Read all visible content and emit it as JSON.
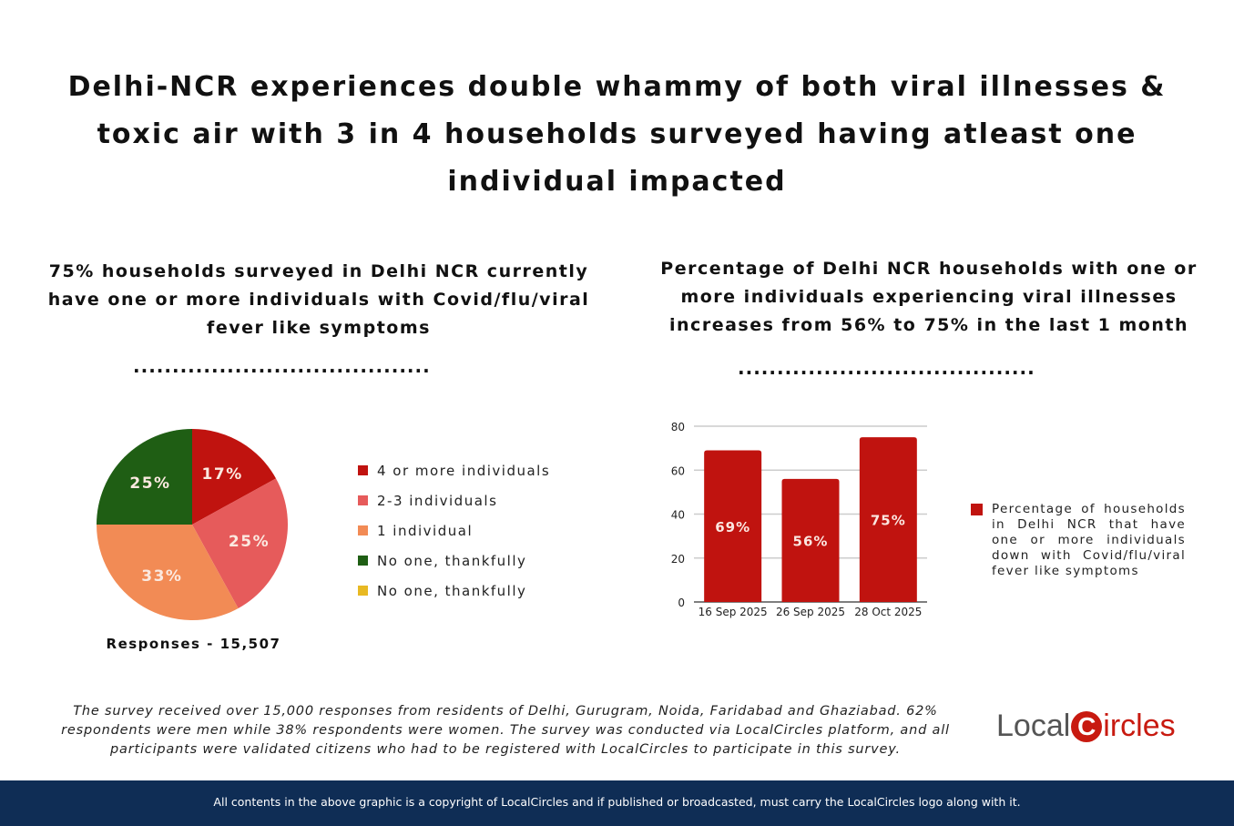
{
  "title": "Delhi-NCR experiences double whammy of both viral illnesses & toxic air with 3 in 4 households surveyed having atleast one individual impacted",
  "left_subtitle": "75% households surveyed in Delhi NCR currently have one or more individuals with Covid/flu/viral fever like symptoms",
  "right_subtitle": "Percentage of Delhi NCR households with one or more individuals experiencing viral illnesses increases from 56% to 75% in the last 1 month",
  "dots": "......................................",
  "responses": "Responses - 15,507",
  "chart_data": [
    {
      "type": "pie",
      "slices": [
        {
          "label": "4 or more individuals",
          "value": 17,
          "data_label": "17%",
          "color": "#c0130f"
        },
        {
          "label": "2-3 individuals",
          "value": 25,
          "data_label": "25%",
          "color": "#e65b5b"
        },
        {
          "label": "1 individual",
          "value": 33,
          "data_label": "33%",
          "color": "#f28b55"
        },
        {
          "label": "No one, thankfully",
          "value": 25,
          "data_label": "25%",
          "color": "#1f5e14"
        },
        {
          "label": "No one, thankfully",
          "value": 0,
          "data_label": "",
          "color": "#e8b923"
        }
      ],
      "legend_position": "right"
    },
    {
      "type": "bar",
      "categories": [
        "16 Sep 2025",
        "26 Sep 2025",
        "28 Oct 2025"
      ],
      "series": [
        {
          "name": "Percentage of households in Delhi NCR that have one or more individuals down with Covid/flu/viral fever like symptoms",
          "values": [
            69,
            56,
            75
          ],
          "data_labels": [
            "69%",
            "56%",
            "75%"
          ],
          "color": "#c0130f"
        }
      ],
      "ylim": [
        0,
        80
      ],
      "yticks": [
        "0",
        "20",
        "40",
        "60",
        "80"
      ],
      "grid": true,
      "legend_position": "right"
    }
  ],
  "footnote": "The survey received over 15,000 responses from residents of Delhi, Gurugram, Noida, Faridabad and Ghaziabad. 62% respondents were men while 38% respondents were women. The survey was conducted via LocalCircles platform, and all participants were validated citizens who had to be registered with LocalCircles to participate in this survey.",
  "logo": {
    "text_left": "Local",
    "letter": "C",
    "text_right": "ircles"
  },
  "copyright": "All contents in the above graphic is a copyright of LocalCircles and if published or broadcasted, must carry the LocalCircles logo along with it."
}
